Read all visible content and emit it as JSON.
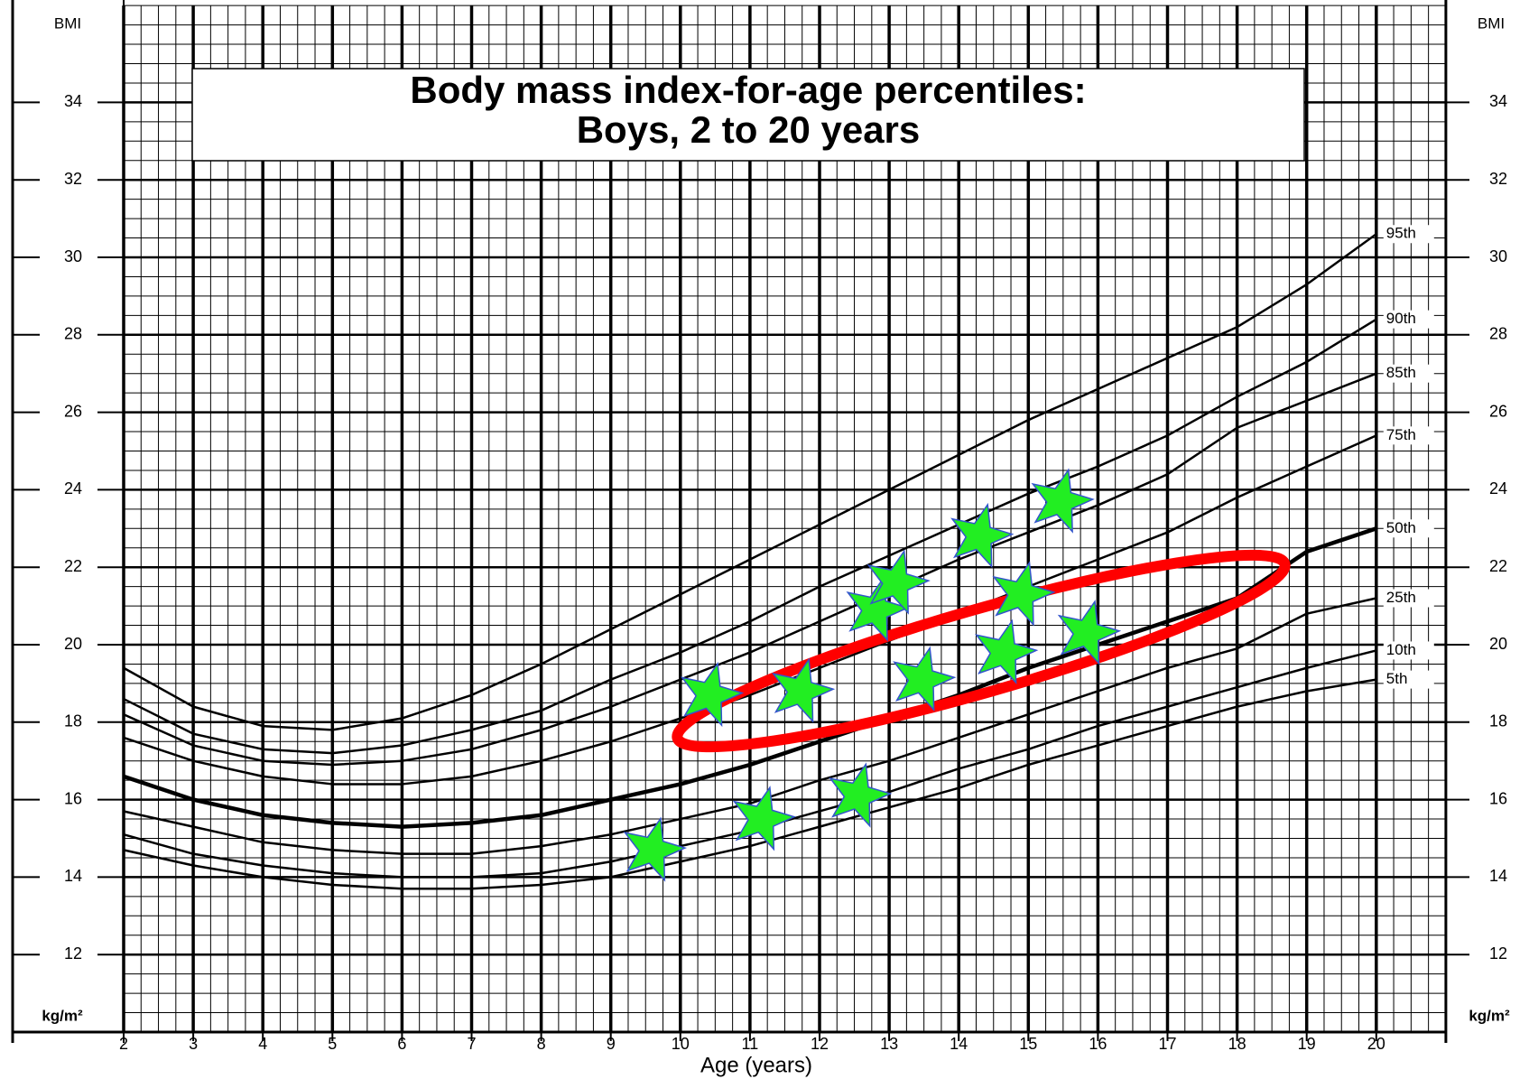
{
  "chart_data": {
    "type": "line",
    "title_lines": [
      "Body mass index-for-age percentiles:",
      "Boys, 2 to 20 years"
    ],
    "x_label": "Age (years)",
    "y_label": "BMI",
    "y_unit": "kg/m²",
    "x": [
      2,
      3,
      4,
      5,
      6,
      7,
      8,
      9,
      10,
      11,
      12,
      13,
      14,
      15,
      16,
      17,
      18,
      19,
      20
    ],
    "xlim": [
      2,
      21
    ],
    "xticks": [
      2,
      3,
      4,
      5,
      6,
      7,
      8,
      9,
      10,
      11,
      12,
      13,
      14,
      15,
      16,
      17,
      18,
      19,
      20
    ],
    "ylim": [
      10,
      36.5
    ],
    "yticks": [
      12,
      14,
      16,
      18,
      20,
      22,
      24,
      26,
      28,
      30,
      32,
      34
    ],
    "grid": true,
    "series": [
      {
        "name": "95th",
        "color": "#000000",
        "values": [
          19.4,
          18.4,
          17.9,
          17.8,
          18.1,
          18.7,
          19.5,
          20.4,
          21.3,
          22.2,
          23.1,
          24.0,
          24.9,
          25.8,
          26.6,
          27.4,
          28.2,
          29.3,
          30.6
        ]
      },
      {
        "name": "90th",
        "color": "#000000",
        "values": [
          18.6,
          17.7,
          17.3,
          17.2,
          17.4,
          17.8,
          18.3,
          19.1,
          19.8,
          20.6,
          21.5,
          22.3,
          23.1,
          23.9,
          24.6,
          25.4,
          26.4,
          27.3,
          28.4
        ]
      },
      {
        "name": "85th",
        "color": "#000000",
        "values": [
          18.2,
          17.4,
          17.0,
          16.9,
          17.0,
          17.3,
          17.8,
          18.4,
          19.1,
          19.8,
          20.6,
          21.4,
          22.2,
          22.9,
          23.6,
          24.4,
          25.6,
          26.3,
          27.0
        ]
      },
      {
        "name": "75th",
        "color": "#000000",
        "values": [
          17.6,
          17.0,
          16.6,
          16.4,
          16.4,
          16.6,
          17.0,
          17.5,
          18.1,
          18.7,
          19.4,
          20.1,
          20.8,
          21.5,
          22.2,
          22.9,
          23.8,
          24.6,
          25.4
        ]
      },
      {
        "name": "50th",
        "color": "#000000",
        "values": [
          16.6,
          16.0,
          15.6,
          15.4,
          15.3,
          15.4,
          15.6,
          16.0,
          16.4,
          16.9,
          17.5,
          18.1,
          18.7,
          19.4,
          20.0,
          20.6,
          21.2,
          22.4,
          23.0
        ]
      },
      {
        "name": "25th",
        "color": "#000000",
        "values": [
          15.7,
          15.3,
          14.9,
          14.7,
          14.6,
          14.6,
          14.8,
          15.1,
          15.5,
          15.9,
          16.5,
          17.0,
          17.6,
          18.2,
          18.8,
          19.4,
          19.9,
          20.8,
          21.2
        ]
      },
      {
        "name": "10th",
        "color": "#000000",
        "values": [
          15.1,
          14.6,
          14.3,
          14.1,
          14.0,
          14.0,
          14.1,
          14.4,
          14.8,
          15.2,
          15.7,
          16.2,
          16.8,
          17.3,
          17.9,
          18.4,
          18.9,
          19.4,
          19.85
        ]
      },
      {
        "name": "5th",
        "color": "#000000",
        "values": [
          14.7,
          14.3,
          14.0,
          13.8,
          13.7,
          13.7,
          13.8,
          14.0,
          14.4,
          14.8,
          15.3,
          15.8,
          16.3,
          16.9,
          17.4,
          17.9,
          18.4,
          18.8,
          19.1
        ]
      }
    ],
    "points": {
      "color": "#22ee22",
      "x": [
        9.6,
        11.17,
        12.55,
        10.42,
        11.73,
        13.47,
        12.8,
        13.1,
        14.3,
        15.46,
        14.9,
        14.65,
        15.84
      ],
      "y": [
        14.7,
        15.5,
        16.1,
        18.7,
        18.8,
        19.1,
        20.9,
        21.6,
        22.8,
        23.7,
        21.3,
        19.8,
        20.3
      ]
    }
  }
}
